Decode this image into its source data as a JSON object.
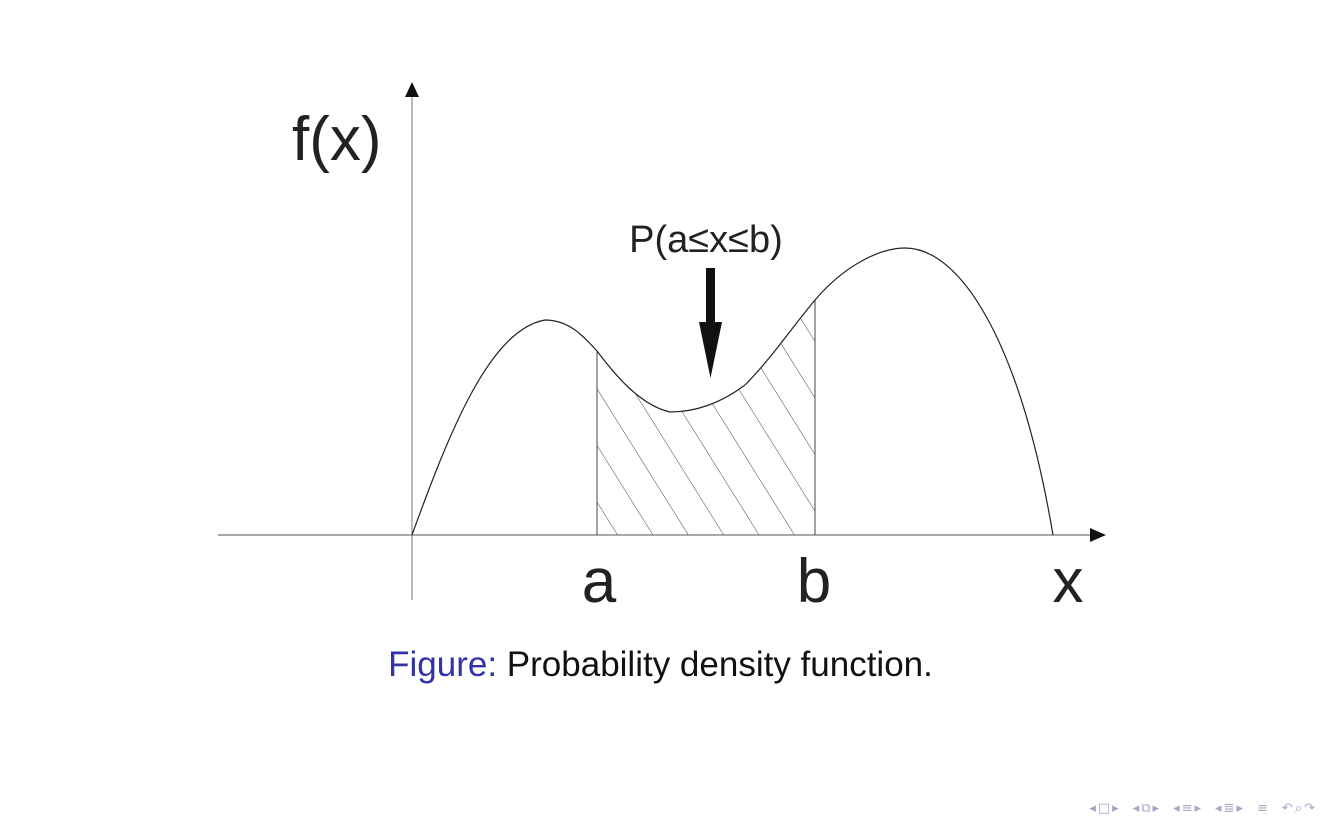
{
  "diagram": {
    "y_axis_label": "f(x)",
    "x_axis_label": "x",
    "a_label": "a",
    "b_label": "b",
    "area_label": "P(a≤x≤b)"
  },
  "caption": {
    "prefix": "Figure:",
    "text": "Probability density function."
  },
  "nav": {
    "icons": [
      "arrow-left-icon",
      "frame-icon",
      "arrow-right-icon",
      "subsection-icon",
      "section-icon",
      "slide-icon",
      "align-icon",
      "search-icon",
      "back-forward-icon"
    ]
  },
  "colors": {
    "caption_prefix": "#3333a8",
    "nav": "#a6a6c8",
    "ink": "#222222"
  }
}
